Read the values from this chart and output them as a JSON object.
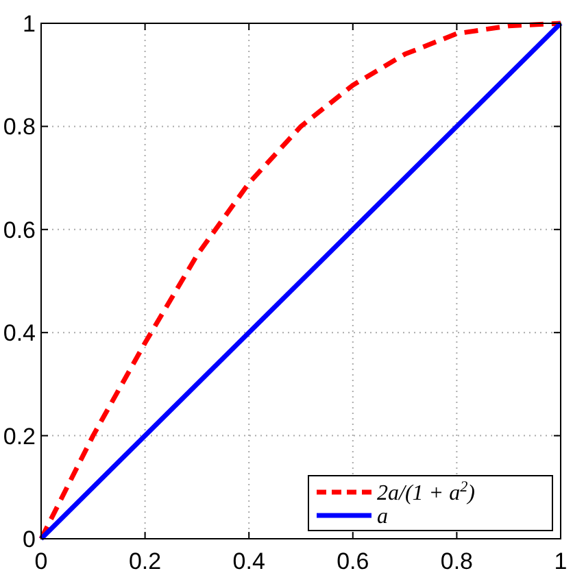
{
  "chart_data": {
    "type": "line",
    "xlim": [
      0,
      1
    ],
    "ylim": [
      0,
      1
    ],
    "xticks": [
      0,
      0.2,
      0.4,
      0.6,
      0.8,
      1
    ],
    "yticks": [
      0,
      0.2,
      0.4,
      0.6,
      0.8,
      1
    ],
    "grid": true,
    "legend": "bottom right",
    "series": [
      {
        "name": "2a/(1 + a$^{2}$)",
        "color": "#ff0000",
        "line_style": "dashed",
        "x": [
          0,
          0.1,
          0.2,
          0.3,
          0.4,
          0.5,
          0.6,
          0.7,
          0.8,
          0.9,
          1
        ],
        "values": [
          0,
          0.2,
          0.38,
          0.55,
          0.69,
          0.8,
          0.88,
          0.94,
          0.98,
          0.995,
          1
        ]
      },
      {
        "name": "a",
        "color": "#0000ff",
        "line_style": "solid",
        "x": [
          0,
          1
        ],
        "values": [
          0,
          1
        ]
      }
    ]
  }
}
